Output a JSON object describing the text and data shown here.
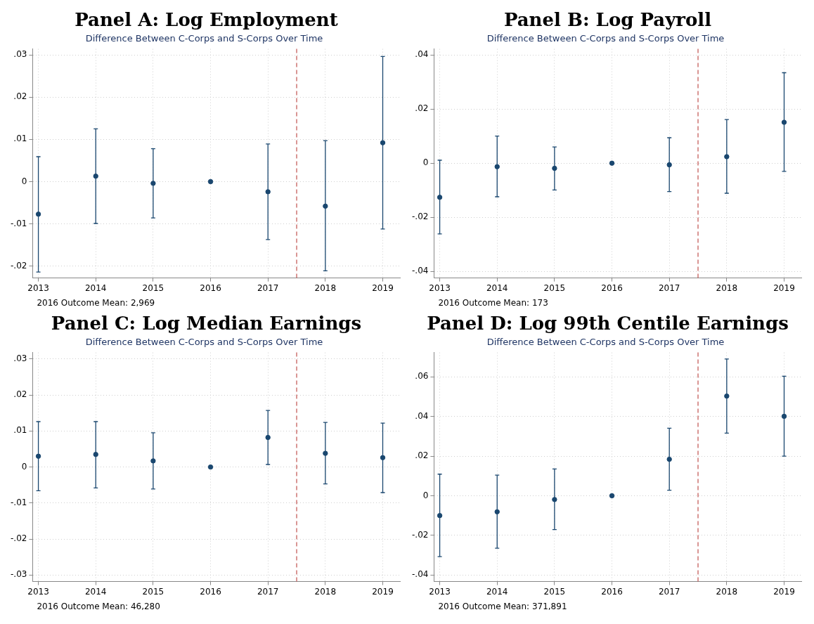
{
  "chart_data": [
    {
      "type": "scatter",
      "title": "Panel A: Log Employment",
      "subtitle": "Difference Between C-Corps and S-Corps Over Time",
      "annotations": [
        "2016 Outcome Mean: 2,969"
      ],
      "x": [
        2013,
        2014,
        2015,
        2016,
        2017,
        2018,
        2019
      ],
      "xlim": [
        2012.9,
        2019.3
      ],
      "xticks": [
        2013,
        2014,
        2015,
        2016,
        2017,
        2018,
        2019
      ],
      "ylim": [
        -0.0228,
        0.0314
      ],
      "yticks": [
        {
          "value": -0.02,
          "label": "-.02"
        },
        {
          "value": -0.01,
          "label": "-.01"
        },
        {
          "value": 0,
          "label": "0"
        },
        {
          "value": 0.01,
          "label": ".01"
        },
        {
          "value": 0.02,
          "label": ".02"
        },
        {
          "value": 0.03,
          "label": ".03"
        }
      ],
      "series": [
        {
          "color": "#1a476f",
          "values": [
            -0.0077,
            0.0013,
            -0.0004,
            0,
            -0.0024,
            -0.0058,
            0.0092
          ],
          "errors": [
            [
              -0.0214,
              0.0059
            ],
            [
              -0.0099,
              0.0125
            ],
            [
              -0.0086,
              0.0078
            ],
            null,
            [
              -0.0137,
              0.0089
            ],
            [
              -0.0211,
              0.0097
            ],
            [
              -0.0112,
              0.0296
            ]
          ]
        }
      ],
      "ref_lines": [
        {
          "axis": "x",
          "value": 2017.5,
          "color": "#c0504d",
          "line_style": "dashed"
        }
      ],
      "grid": true,
      "marker": "circle"
    },
    {
      "type": "scatter",
      "title": "Panel B: Log Payroll",
      "subtitle": "Difference Between C-Corps and S-Corps Over Time",
      "annotations": [
        "2016 Outcome Mean: 173"
      ],
      "x": [
        2013,
        2014,
        2015,
        2016,
        2017,
        2018,
        2019
      ],
      "xlim": [
        2012.9,
        2019.3
      ],
      "xticks": [
        2013,
        2014,
        2015,
        2016,
        2017,
        2018,
        2019
      ],
      "ylim": [
        -0.0424,
        0.0422
      ],
      "yticks": [
        {
          "value": -0.04,
          "label": "-.04"
        },
        {
          "value": -0.02,
          "label": "-.02"
        },
        {
          "value": 0,
          "label": "0"
        },
        {
          "value": 0.02,
          "label": ".02"
        },
        {
          "value": 0.04,
          "label": ".04"
        }
      ],
      "series": [
        {
          "color": "#1a476f",
          "values": [
            -0.0126,
            -0.0013,
            -0.0019,
            0,
            -0.0006,
            0.0024,
            0.0151
          ],
          "errors": [
            [
              -0.0261,
              0.0011
            ],
            [
              -0.0124,
              0.01
            ],
            [
              -0.0099,
              0.006
            ],
            null,
            [
              -0.0105,
              0.0094
            ],
            [
              -0.0111,
              0.0161
            ],
            [
              -0.003,
              0.0334
            ]
          ]
        }
      ],
      "ref_lines": [
        {
          "axis": "x",
          "value": 2017.5,
          "color": "#c0504d",
          "line_style": "dashed"
        }
      ],
      "grid": true,
      "marker": "circle"
    },
    {
      "type": "scatter",
      "title": "Panel C: Log Median Earnings",
      "subtitle": "Difference Between C-Corps and S-Corps Over Time",
      "annotations": [
        "2016 Outcome Mean: 46,280"
      ],
      "x": [
        2013,
        2014,
        2015,
        2016,
        2017,
        2018,
        2019
      ],
      "xlim": [
        2012.9,
        2019.3
      ],
      "xticks": [
        2013,
        2014,
        2015,
        2016,
        2017,
        2018,
        2019
      ],
      "ylim": [
        -0.0318,
        0.0318
      ],
      "yticks": [
        {
          "value": -0.03,
          "label": "-.03"
        },
        {
          "value": -0.02,
          "label": "-.02"
        },
        {
          "value": -0.01,
          "label": "-.01"
        },
        {
          "value": 0,
          "label": "0"
        },
        {
          "value": 0.01,
          "label": ".01"
        },
        {
          "value": 0.02,
          "label": ".02"
        },
        {
          "value": 0.03,
          "label": ".03"
        }
      ],
      "series": [
        {
          "color": "#1a476f",
          "values": [
            0.003,
            0.0035,
            0.0017,
            0,
            0.0082,
            0.0038,
            0.0026
          ],
          "errors": [
            [
              -0.0066,
              0.0126
            ],
            [
              -0.0058,
              0.0126
            ],
            [
              -0.0061,
              0.0095
            ],
            null,
            [
              0.0007,
              0.0157
            ],
            [
              -0.0047,
              0.0124
            ],
            [
              -0.0071,
              0.0122
            ]
          ]
        }
      ],
      "ref_lines": [
        {
          "axis": "x",
          "value": 2017.5,
          "color": "#c0504d",
          "line_style": "dashed"
        }
      ],
      "grid": true,
      "marker": "circle"
    },
    {
      "type": "scatter",
      "title": "Panel D: Log 99th Centile Earnings",
      "subtitle": "Difference Between C-Corps and S-Corps Over Time",
      "annotations": [
        "2016 Outcome Mean: 371,891"
      ],
      "x": [
        2013,
        2014,
        2015,
        2016,
        2017,
        2018,
        2019
      ],
      "xlim": [
        2012.9,
        2019.3
      ],
      "xticks": [
        2013,
        2014,
        2015,
        2016,
        2017,
        2018,
        2019
      ],
      "ylim": [
        -0.0433,
        0.0723
      ],
      "yticks": [
        {
          "value": -0.04,
          "label": "-.04"
        },
        {
          "value": -0.02,
          "label": "-.02"
        },
        {
          "value": 0,
          "label": "0"
        },
        {
          "value": 0.02,
          "label": ".02"
        },
        {
          "value": 0.04,
          "label": ".04"
        },
        {
          "value": 0.06,
          "label": ".06"
        }
      ],
      "series": [
        {
          "color": "#1a476f",
          "values": [
            -0.01,
            -0.0081,
            -0.0019,
            0,
            0.0184,
            0.0503,
            0.0401
          ],
          "errors": [
            [
              -0.0307,
              0.0109
            ],
            [
              -0.0265,
              0.0104
            ],
            [
              -0.0171,
              0.0135
            ],
            null,
            [
              0.0028,
              0.0341
            ],
            [
              0.0316,
              0.069
            ],
            [
              0.02,
              0.0603
            ]
          ]
        }
      ],
      "ref_lines": [
        {
          "axis": "x",
          "value": 2017.5,
          "color": "#c0504d",
          "line_style": "dashed"
        }
      ],
      "grid": true,
      "marker": "circle"
    }
  ]
}
